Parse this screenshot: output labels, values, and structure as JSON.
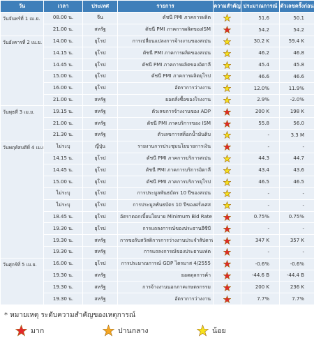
{
  "table": {
    "headers": [
      "วัน",
      "เวลา",
      "ประเทศ",
      "รายการ",
      "ความสำคัญ",
      "ประมาณการณ์",
      "ตัวเลขครั้งก่อน"
    ],
    "groups": [
      {
        "day": "วันจันทร์ที่ 1 เม.ย.",
        "rows": [
          {
            "time": "08.00 น.",
            "country": "จีน",
            "event": "ดัชนี PMI ภาคการผลิต",
            "star": "#f7e21c",
            "forecast": "51.6",
            "previous": "50.1"
          },
          {
            "time": "21.00 น.",
            "country": "สหรัฐ",
            "event": "ดัชนี PMI ภาคการผลิตของISM",
            "star": "#e3262a",
            "forecast": "54.2",
            "previous": "54.2"
          }
        ]
      },
      {
        "day": "วันอังคารที่ 2 เม.ย.",
        "rows": [
          {
            "time": "14.00 น.",
            "country": "ยุโรป",
            "event": "การเปลี่ยนแปลงการจ้างงานของสเปน",
            "star": "#f7e21c",
            "forecast": "30.2 K",
            "previous": "59.4 K"
          },
          {
            "time": "14.15 น.",
            "country": "ยุโรป",
            "event": "ดัชนี PMI ภาคการผลิตของสเปน",
            "star": "#f7e21c",
            "forecast": "46.2",
            "previous": "46.8"
          },
          {
            "time": "14.45 น.",
            "country": "ยุโรป",
            "event": "ดัชนี PMI ภาคการผลิตของอิตาลี",
            "star": "#f7e21c",
            "forecast": "45.4",
            "previous": "45.8"
          },
          {
            "time": "15.00 น.",
            "country": "ยุโรป",
            "event": "ดัชนี PMI ภาคการผลิตยุโรป",
            "star": "#f7e21c",
            "forecast": "46.6",
            "previous": "46.6"
          },
          {
            "time": "16.00 น.",
            "country": "ยุโรป",
            "event": "อัตราการว่างงาน",
            "star": "#f7e21c",
            "forecast": "12.0%",
            "previous": "11.9%"
          },
          {
            "time": "21.00 น.",
            "country": "สหรัฐ",
            "event": "ยอดสั่งซื้อของโรงงาน",
            "star": "#f7e21c",
            "forecast": "2.9%",
            "previous": "-2.0%"
          }
        ]
      },
      {
        "day": "วันพุธที่ 3 เม.ย.",
        "rows": [
          {
            "time": "19.15 น.",
            "country": "สหรัฐ",
            "event": "ตัวเลขการจ้างงานของ ADP",
            "star": "#e3262a",
            "forecast": "200 K",
            "previous": "198 K"
          },
          {
            "time": "21.00 น.",
            "country": "สหรัฐ",
            "event": "ดัชนี PMI ภาคบริการของ ISM",
            "star": "#e3262a",
            "forecast": "55.8",
            "previous": "56.0"
          },
          {
            "time": "21.30 น.",
            "country": "สหรัฐ",
            "event": "ตัวเลขการสต็อกน้ำมันดิบ",
            "star": "#f7e21c",
            "forecast": "-",
            "previous": "3.3 M"
          }
        ]
      },
      {
        "day": "วันพฤหัสบดีที่ 4 เม.ย.",
        "rows": [
          {
            "time": "ไม่ระบุ",
            "country": "ญี่ปุ่น",
            "event": "รายงานการประชุมนโยบายการเงิน",
            "star": "#e3262a",
            "forecast": "-",
            "previous": "-"
          },
          {
            "time": "14.15 น.",
            "country": "ยุโรป",
            "event": "ดัชนี PMI ภาคการบริการสเปน",
            "star": "#f7e21c",
            "forecast": "44.3",
            "previous": "44.7"
          },
          {
            "time": "14.45 น.",
            "country": "ยุโรป",
            "event": "ดัชนี PMI ภาคการบริการอิตาลี",
            "star": "#f7e21c",
            "forecast": "43.4",
            "previous": "43.6"
          },
          {
            "time": "15.00 น.",
            "country": "ยุโรป",
            "event": "ดัชนี PMI ภาคการบริการยุโรป",
            "star": "#f7e21c",
            "forecast": "46.5",
            "previous": "46.5"
          },
          {
            "time": "ไม่ระบุ",
            "country": "ยุโรป",
            "event": "การประมูลพันธบัตร 10 ปีของสเปน",
            "star": "#f7e21c",
            "forecast": "-",
            "previous": "-"
          },
          {
            "time": "ไม่ระบุ",
            "country": "ยุโรป",
            "event": "การประมูลพันธบัตร 10 ปีของฝรั่งเศส",
            "star": "#f7e21c",
            "forecast": "-",
            "previous": "-"
          },
          {
            "time": "18.45 น.",
            "country": "ยุโรป",
            "event": "อัตราดอกเบี้ยนโยบาย Minimum Bid Rate",
            "star": "#e3262a",
            "forecast": "0.75%",
            "previous": "0.75%"
          },
          {
            "time": "19.30 น.",
            "country": "ยุโรป",
            "event": "การแถลงการณ์ของประธานอีซีบี",
            "star": "#e3262a",
            "forecast": "-",
            "previous": "-"
          },
          {
            "time": "19.30 น.",
            "country": "สหรัฐ",
            "event": "การขอรับสวัสดิการการว่างงานประจำสัปดาห์",
            "star": "#e3262a",
            "forecast": "347 K",
            "previous": "357 K"
          },
          {
            "time": "19.30 น.",
            "country": "สหรัฐ",
            "event": "การแถลงการณ์ของประธานเฟด",
            "star": "#e3262a",
            "forecast": "-",
            "previous": "-"
          }
        ]
      },
      {
        "day": "วันศุกร์ที่ 5 เม.ย.",
        "rows": [
          {
            "time": "16.00 น.",
            "country": "ยุโรป",
            "event": "การประมาณการณ์ GDP ไตรมาส 4/2555",
            "star": "#e3262a",
            "forecast": "-0.6%",
            "previous": "-0.6%"
          },
          {
            "time": "19.30 น.",
            "country": "สหรัฐ",
            "event": "ยอดดุลการค้า",
            "star": "#e3262a",
            "forecast": "-44.6 B",
            "previous": "-44.4 B"
          },
          {
            "time": "19.30 น.",
            "country": "สหรัฐ",
            "event": "การจ้างงานนอกภาคเกษตรกรรม",
            "star": "#e3262a",
            "forecast": "200 K",
            "previous": "236 K"
          },
          {
            "time": "19.30 น.",
            "country": "สหรัฐ",
            "event": "อัตราการว่างงาน",
            "star": "#e3262a",
            "forecast": "7.7%",
            "previous": "7.7%"
          }
        ]
      }
    ]
  },
  "note": {
    "text": "* หมายเหตุ ระดับความสำคัญของเหตุการณ์",
    "legend": [
      {
        "label": "มาก",
        "color": "#e3262a"
      },
      {
        "label": "ปานกลาง",
        "color": "#f5a623"
      },
      {
        "label": "น้อย",
        "color": "#f7e21c"
      }
    ]
  }
}
